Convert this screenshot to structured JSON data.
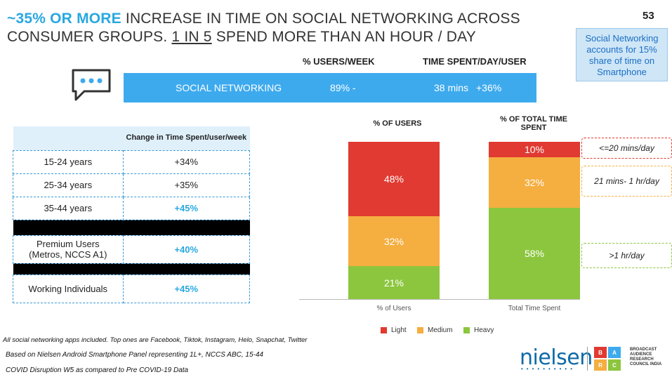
{
  "title": {
    "highlight": "~35% OR MORE",
    "rest1": " INCREASE IN TIME ON SOCIAL NETWORKING ACROSS CONSUMER GROUPS.  ",
    "underlined": "1 IN 5",
    "rest2": " SPEND MORE THAN AN HOUR / DAY"
  },
  "page_number": "53",
  "callout": "Social Networking accounts for 15% share of time on Smartphone",
  "header_cols": {
    "users_week": "% USERS/WEEK",
    "time_spent": "TIME SPENT/DAY/USER"
  },
  "social_bar": {
    "label": "SOCIAL NETWORKING",
    "users": "89% -",
    "time": "38 mins",
    "change": "+36%"
  },
  "age_table": {
    "header": "Change in Time Spent/user/week",
    "rows": [
      {
        "label": "15-24 years",
        "value": "+34%"
      },
      {
        "label": "25-34 years",
        "value": "+35%"
      },
      {
        "label": "35-44 years",
        "value": "+45%"
      },
      {
        "label": "Premium Users (Metros, NCCS A1)",
        "value": "+40%"
      },
      {
        "label": "Working Individuals",
        "value": "+45%"
      }
    ]
  },
  "chart_data": {
    "type": "bar",
    "stacked": true,
    "categories": [
      "% of Users",
      "Total Time Spent"
    ],
    "column_titles": [
      "% OF USERS",
      "% OF TOTAL TIME SPENT"
    ],
    "series": [
      {
        "name": "Light",
        "color": "#e03a32",
        "values": [
          48,
          10
        ],
        "labels": [
          "48%",
          "10%"
        ]
      },
      {
        "name": "Medium",
        "color": "#f5ae40",
        "values": [
          32,
          32
        ],
        "labels": [
          "32%",
          "32%"
        ]
      },
      {
        "name": "Heavy",
        "color": "#8cc63e",
        "values": [
          21,
          58
        ],
        "labels": [
          "21%",
          "58%"
        ]
      }
    ],
    "ranges": [
      {
        "label": "<=20 mins/day",
        "color": "#e03a32"
      },
      {
        "label": "21 mins- 1 hr/day",
        "color": "#f5ae40"
      },
      {
        "label": ">1 hr/day",
        "color": "#8cc63e"
      }
    ],
    "legend_position": "bottom"
  },
  "footnotes": [
    "All social networking apps included. Top ones are Facebook, Tiktok, Instagram, Helo, Snapchat, Twitter",
    "Based on Nielsen Android Smartphone Panel representing 1L+, NCCS ABC, 15-44",
    "COVID Disruption W5  as compared to Pre COVID-19 Data"
  ],
  "logos": {
    "nielsen": "nielsen",
    "barc_letters": [
      "B",
      "A",
      "R",
      "C"
    ],
    "barc_text": "BROADCAST AUDIENCE RESEARCH COUNCIL INDIA"
  }
}
